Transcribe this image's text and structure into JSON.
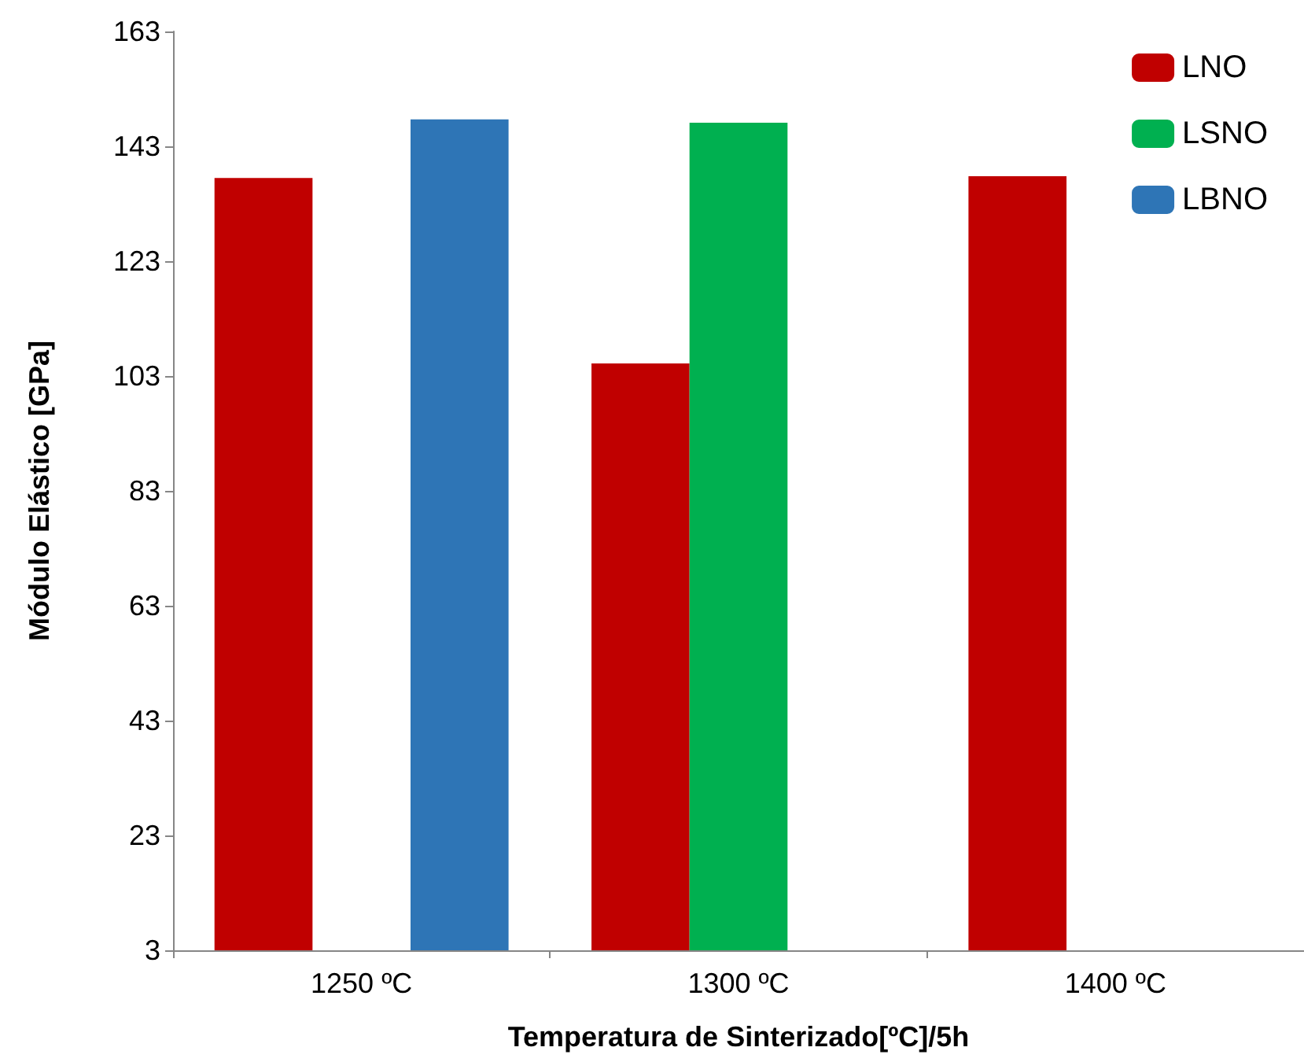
{
  "chart_data": {
    "type": "bar",
    "xlabel": "Temperatura de Sinterizado[ºC]/5h",
    "ylabel": "Módulo Elástico [GPa]",
    "categories": [
      "1250 ºC",
      "1300 ºC",
      "1400 ºC"
    ],
    "series": [
      {
        "name": "LNO",
        "color": "#c00000",
        "values": [
          137.5,
          105.2,
          137.8
        ]
      },
      {
        "name": "LSNO",
        "color": "#00b050",
        "values": [
          null,
          147.1,
          null
        ]
      },
      {
        "name": "LBNO",
        "color": "#2e75b6",
        "values": [
          147.7,
          null,
          null
        ]
      }
    ],
    "ylim": [
      3,
      163
    ],
    "yticks": [
      3,
      23,
      43,
      63,
      83,
      103,
      123,
      143,
      163
    ],
    "grid": false,
    "legend": "top right"
  }
}
